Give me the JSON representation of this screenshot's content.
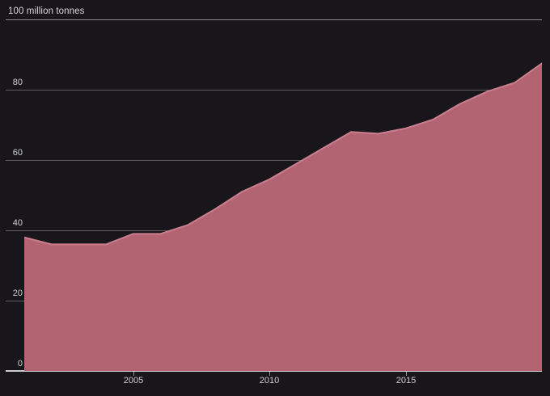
{
  "chart": {
    "colors": {
      "background": "#18161b",
      "area_fill": "#b26473",
      "area_line": "#cb7f8e",
      "gridline": "rgba(255,255,255,0.30)",
      "gridline_top": "rgba(255,255,255,0.50)",
      "baseline": "#cccccc",
      "tick": "rgba(255,255,255,0.55)",
      "label_text": "#cfcfcf"
    }
  },
  "chart_data": {
    "type": "area",
    "title": "100 million tonnes",
    "xlabel": "",
    "ylabel": "100 million tonnes",
    "x": [
      2001,
      2002,
      2003,
      2004,
      2005,
      2006,
      2007,
      2008,
      2009,
      2010,
      2011,
      2012,
      2013,
      2014,
      2015,
      2016,
      2017,
      2018,
      2019,
      2020
    ],
    "values": [
      38,
      36,
      36,
      36,
      39,
      39,
      41.5,
      46,
      51,
      54.5,
      59,
      63.5,
      68,
      67.5,
      69,
      71.5,
      76,
      79.5,
      82,
      87.5
    ],
    "xlim": [
      2001,
      2020
    ],
    "ylim": [
      0,
      100
    ],
    "yticks": [
      0,
      20,
      40,
      60,
      80,
      100
    ],
    "ytick_labels": [
      "0",
      "20",
      "40",
      "60",
      "80"
    ],
    "xticks": [
      2005,
      2010,
      2015
    ],
    "xtick_labels": [
      "2005",
      "2010",
      "2015"
    ],
    "grid": "horizontal",
    "legend": false
  }
}
